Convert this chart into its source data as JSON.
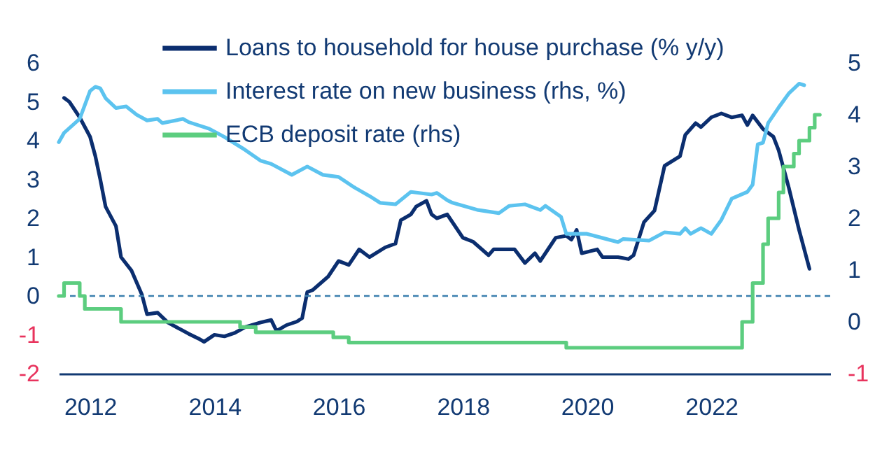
{
  "chart_data": {
    "type": "line",
    "xlim": [
      "2011-07",
      "2023-12"
    ],
    "xticks": [
      "2012",
      "2014",
      "2016",
      "2018",
      "2020",
      "2022"
    ],
    "ylim": [
      -2,
      6
    ],
    "yticks": [
      -2,
      -1,
      0,
      1,
      2,
      3,
      4,
      5,
      6
    ],
    "y2lim": [
      -1,
      5
    ],
    "y2ticks": [
      -1,
      0,
      1,
      2,
      3,
      4,
      5
    ],
    "legend": "top",
    "marker": "none",
    "line_style": "solid",
    "ref_lines": [
      {
        "axis": "y",
        "value": 0,
        "color": "#3b7fae",
        "line_style": "dashed"
      }
    ],
    "series": [
      {
        "name": "Loans to household for house purchase (% y/y)",
        "color": "#0b2e6f",
        "x": [
          "2011-08",
          "2011-09",
          "2011-11",
          "2012-01",
          "2012-02",
          "2012-03",
          "2012-04",
          "2012-06",
          "2012-07",
          "2012-09",
          "2012-11",
          "2012-12",
          "2013-02",
          "2013-04",
          "2013-08",
          "2013-10",
          "2013-11",
          "2014-01",
          "2014-03",
          "2014-05",
          "2014-07",
          "2014-10",
          "2014-12",
          "2015-01",
          "2015-03",
          "2015-05",
          "2015-06",
          "2015-07",
          "2015-08",
          "2015-11",
          "2016-01",
          "2016-03",
          "2016-05",
          "2016-07",
          "2016-10",
          "2016-12",
          "2017-01",
          "2017-03",
          "2017-04",
          "2017-06",
          "2017-07",
          "2017-08",
          "2017-10",
          "2018-01",
          "2018-03",
          "2018-06",
          "2018-07",
          "2018-11",
          "2019-01",
          "2019-03",
          "2019-04",
          "2019-07",
          "2019-09",
          "2019-10",
          "2019-11",
          "2019-12",
          "2020-03",
          "2020-04",
          "2020-07",
          "2020-09",
          "2020-10",
          "2020-12",
          "2021-02",
          "2021-04",
          "2021-07",
          "2021-08",
          "2021-09",
          "2021-10",
          "2021-11",
          "2022-01",
          "2022-03",
          "2022-05",
          "2022-07",
          "2022-08",
          "2022-09",
          "2022-11",
          "2023-01",
          "2023-02",
          "2023-04",
          "2023-06",
          "2023-08"
        ],
        "values": [
          5.1,
          5.0,
          4.6,
          4.1,
          3.6,
          3.0,
          2.3,
          1.8,
          1.0,
          0.65,
          0.03,
          -0.47,
          -0.43,
          -0.68,
          -0.97,
          -1.1,
          -1.18,
          -1.0,
          -1.04,
          -0.95,
          -0.8,
          -0.68,
          -0.62,
          -0.9,
          -0.75,
          -0.66,
          -0.57,
          0.1,
          0.15,
          0.5,
          0.9,
          0.8,
          1.2,
          1.0,
          1.25,
          1.35,
          1.95,
          2.1,
          2.3,
          2.45,
          2.1,
          2.0,
          2.1,
          1.5,
          1.4,
          1.05,
          1.2,
          1.2,
          0.85,
          1.1,
          0.9,
          1.5,
          1.55,
          1.45,
          1.7,
          1.1,
          1.2,
          1.0,
          1.0,
          0.95,
          1.05,
          1.9,
          2.2,
          3.35,
          3.6,
          4.15,
          4.3,
          4.45,
          4.35,
          4.6,
          4.7,
          4.6,
          4.65,
          4.4,
          4.65,
          4.3,
          4.1,
          3.75,
          2.8,
          1.7,
          0.7
        ]
      },
      {
        "name": "Interest rate on new business (rhs, %)",
        "color": "#5cc3ef",
        "axis": "y2",
        "x": [
          "2011-07",
          "2011-08",
          "2011-11",
          "2012-01",
          "2012-02",
          "2012-03",
          "2012-04",
          "2012-06",
          "2012-08",
          "2012-10",
          "2012-12",
          "2013-02",
          "2013-03",
          "2013-07",
          "2013-08",
          "2013-12",
          "2014-03",
          "2014-07",
          "2014-10",
          "2014-12",
          "2015-04",
          "2015-07",
          "2015-10",
          "2016-01",
          "2016-04",
          "2016-07",
          "2016-09",
          "2016-12",
          "2017-03",
          "2017-07",
          "2017-08",
          "2017-10",
          "2017-11",
          "2018-04",
          "2018-08",
          "2018-10",
          "2019-01",
          "2019-04",
          "2019-05",
          "2019-08",
          "2019-09",
          "2020-01",
          "2020-04",
          "2020-07",
          "2020-08",
          "2021-01",
          "2021-04",
          "2021-07",
          "2021-08",
          "2021-09",
          "2021-11",
          "2022-01",
          "2022-03",
          "2022-05",
          "2022-08",
          "2022-09",
          "2022-10",
          "2022-11",
          "2022-12",
          "2023-02",
          "2023-04",
          "2023-06",
          "2023-07"
        ],
        "values": [
          3.47,
          3.65,
          3.92,
          4.46,
          4.54,
          4.51,
          4.32,
          4.13,
          4.16,
          4.0,
          3.89,
          3.92,
          3.84,
          3.92,
          3.86,
          3.73,
          3.57,
          3.32,
          3.11,
          3.05,
          2.84,
          3.0,
          2.84,
          2.8,
          2.6,
          2.43,
          2.3,
          2.27,
          2.51,
          2.46,
          2.49,
          2.35,
          2.3,
          2.16,
          2.1,
          2.24,
          2.27,
          2.16,
          2.24,
          2.03,
          1.7,
          1.7,
          1.62,
          1.54,
          1.6,
          1.57,
          1.73,
          1.7,
          1.81,
          1.7,
          1.81,
          1.7,
          1.97,
          2.38,
          2.51,
          2.65,
          3.43,
          3.46,
          3.84,
          4.14,
          4.41,
          4.6,
          4.57
        ]
      },
      {
        "name": "ECB deposit rate (rhs)",
        "color": "#5ccd7f",
        "axis": "y2",
        "type": "step",
        "x": [
          "2011-07",
          "2011-08",
          "2011-11",
          "2011-12",
          "2012-07",
          "2014-06",
          "2014-09",
          "2015-12",
          "2016-03",
          "2019-09",
          "2022-07",
          "2022-09",
          "2022-11",
          "2022-12",
          "2023-02",
          "2023-03",
          "2023-05",
          "2023-06",
          "2023-08",
          "2023-09",
          "2023-10"
        ],
        "values": [
          0.5,
          0.75,
          0.5,
          0.25,
          0,
          -0.1,
          -0.2,
          -0.3,
          -0.4,
          -0.5,
          0,
          0.75,
          1.5,
          2.0,
          2.5,
          3.0,
          3.25,
          3.5,
          3.75,
          4.0,
          4.0
        ]
      }
    ]
  }
}
